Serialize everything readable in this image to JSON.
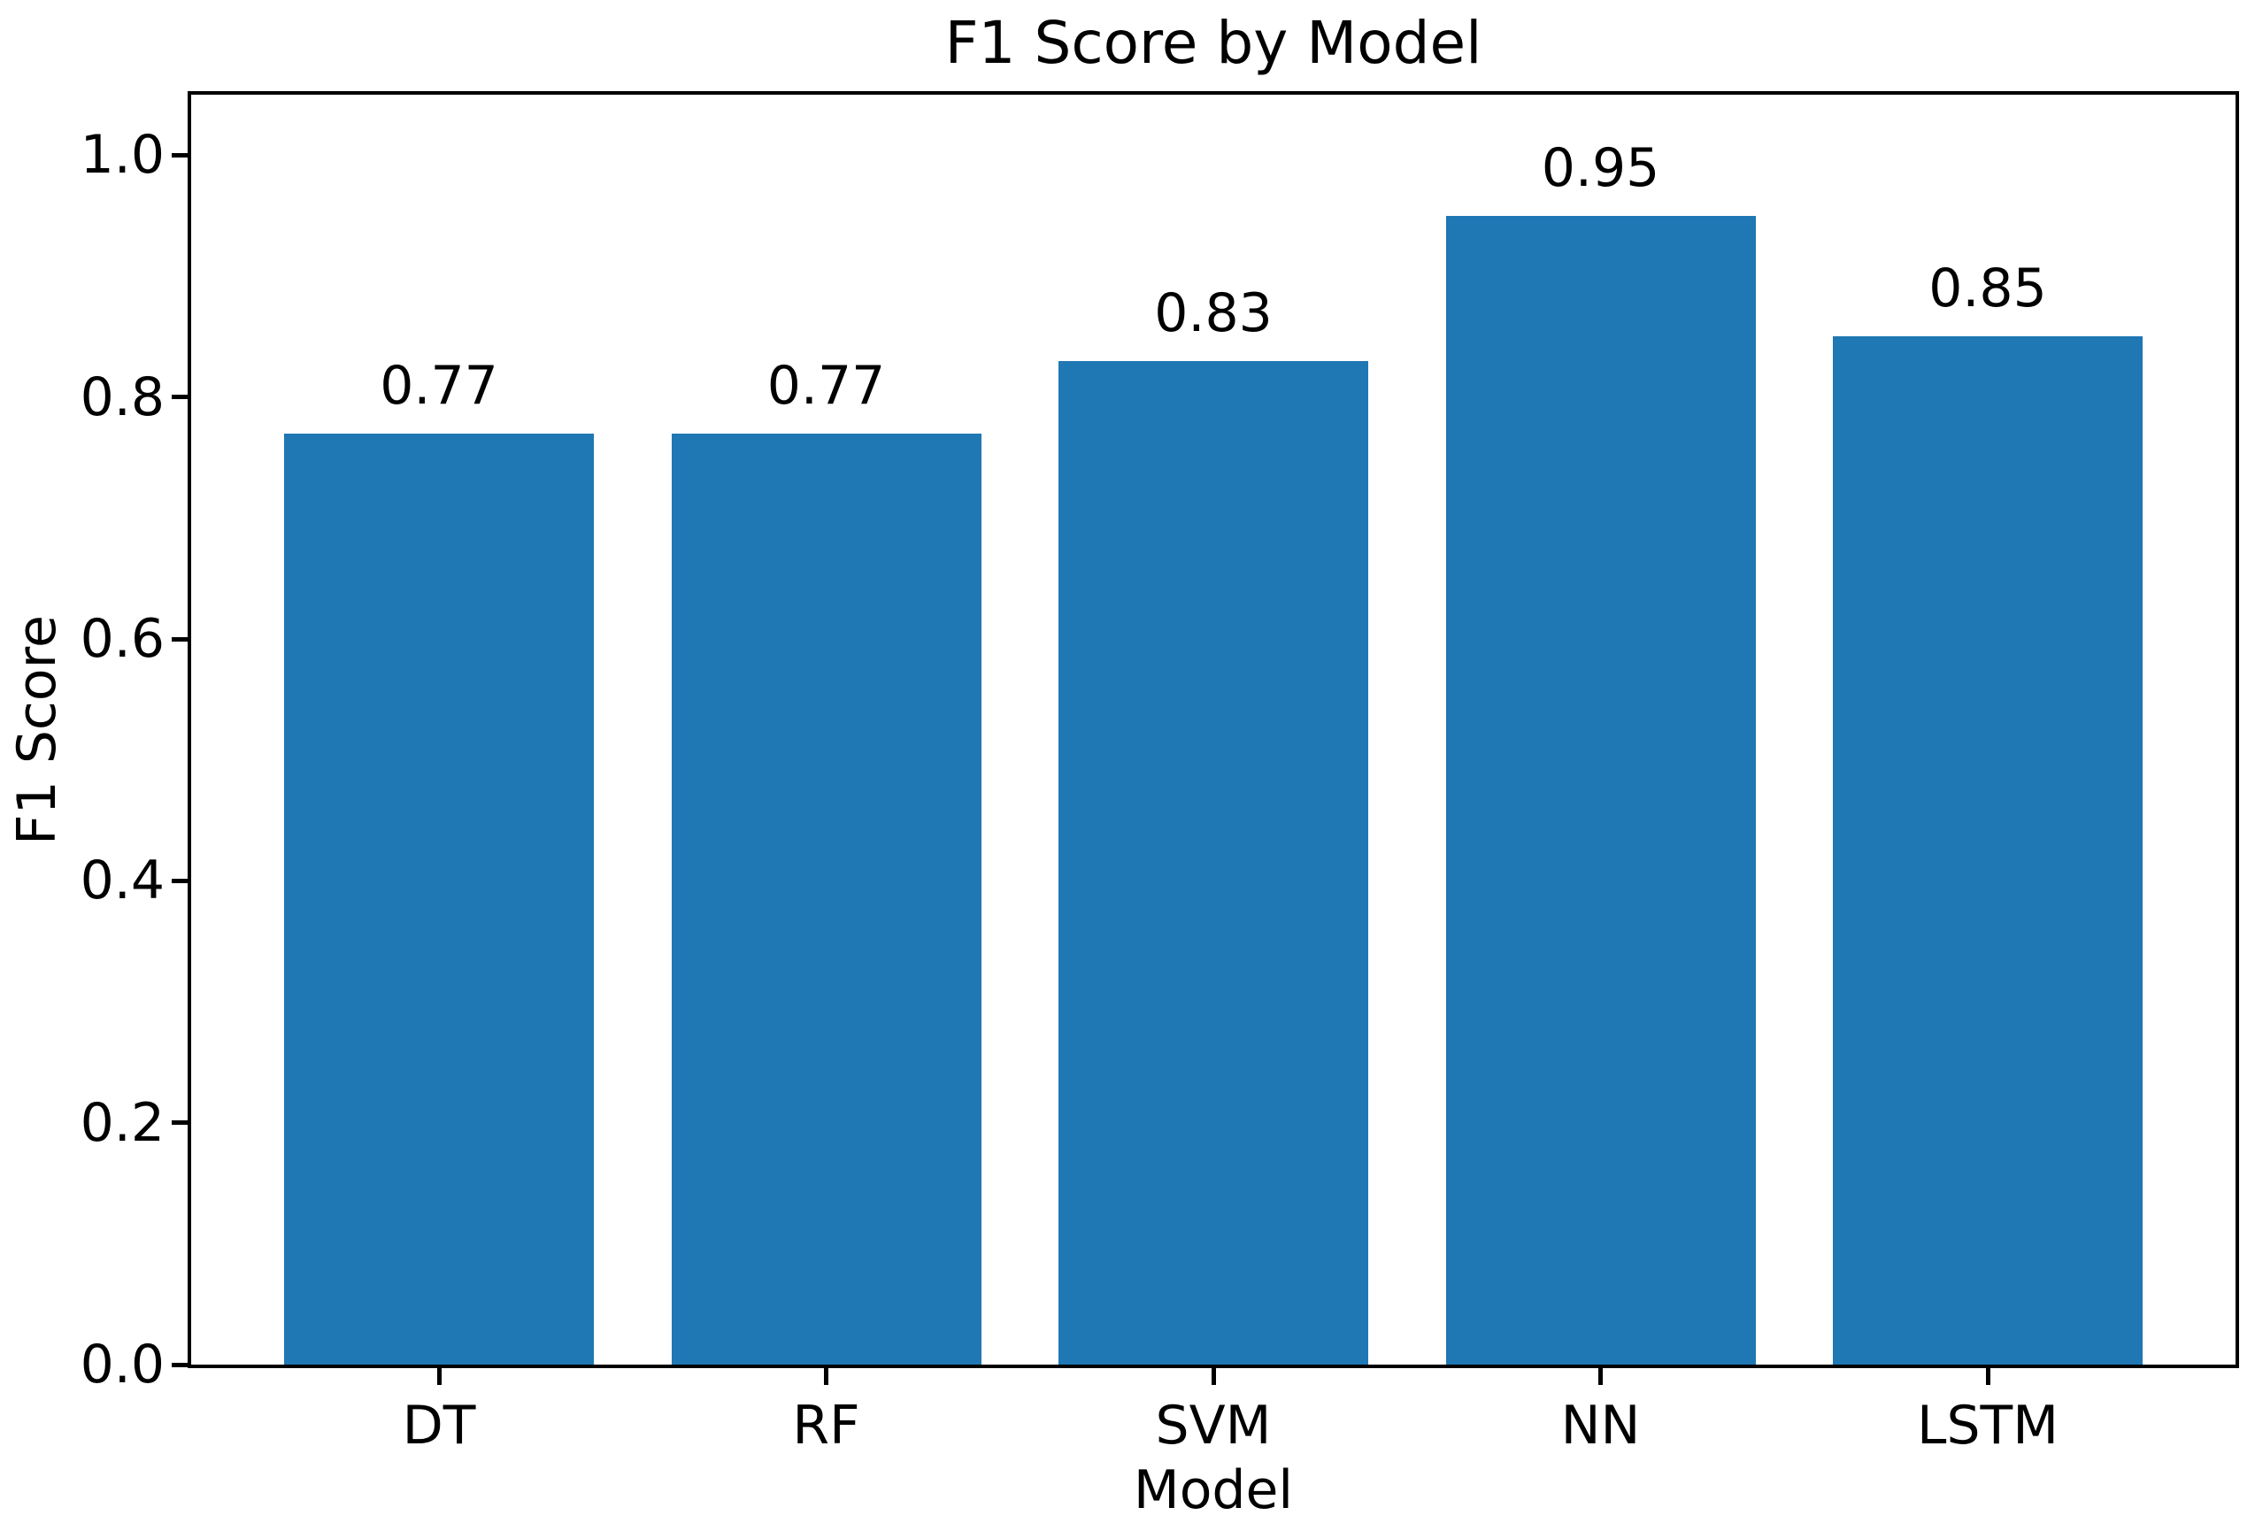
{
  "chart_data": {
    "type": "bar",
    "title": "F1 Score by Model",
    "xlabel": "Model",
    "ylabel": "F1 Score",
    "categories": [
      "DT",
      "RF",
      "SVM",
      "NN",
      "LSTM"
    ],
    "values": [
      0.77,
      0.77,
      0.83,
      0.95,
      0.85
    ],
    "bar_value_labels": [
      "0.77",
      "0.77",
      "0.83",
      "0.95",
      "0.85"
    ],
    "ytick_values": [
      0.0,
      0.2,
      0.4,
      0.6,
      0.8,
      1.0
    ],
    "ytick_labels": [
      "0.0",
      "0.2",
      "0.4",
      "0.6",
      "0.8",
      "1.0"
    ],
    "ylim": [
      0,
      1.05
    ],
    "bar_width_fraction": 0.8,
    "category_margin": 0.24,
    "bar_color": "#1f77b4",
    "spine_color": "#000000",
    "text_color": "#000000",
    "background_color": "#ffffff",
    "grid": false,
    "legend_position": "none"
  }
}
